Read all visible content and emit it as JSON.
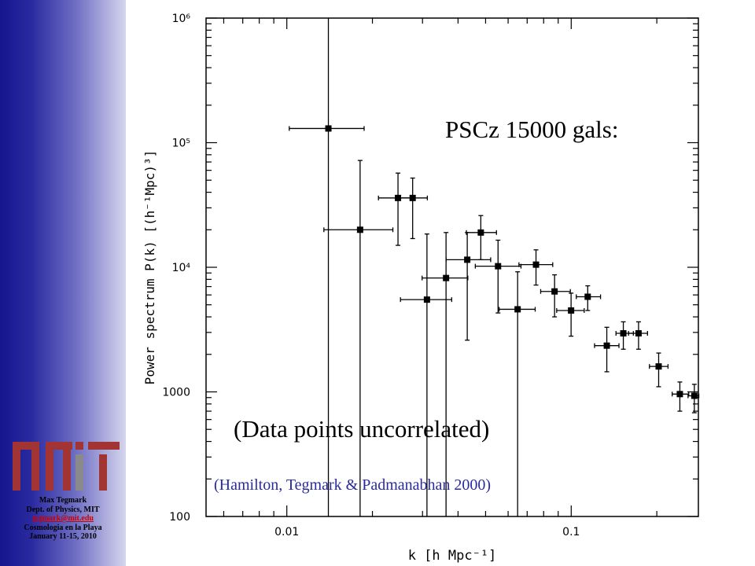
{
  "sidebar": {
    "author": "Max Tegmark",
    "dept": "Dept. of Physics, MIT",
    "email": "tegmark@mit.edu",
    "event": "Cosmologia en la Playa",
    "dates": "January 11-15, 2010"
  },
  "colors": {
    "logo_red": "#a33434",
    "logo_gray": "#8a8a8a",
    "reference_text": "#2a2aa0",
    "email_text": "#d00000"
  },
  "chart_data": {
    "type": "scatter",
    "xscale": "log",
    "yscale": "log",
    "xlim": [
      0.0052,
      0.28
    ],
    "ylim": [
      100,
      1000000
    ],
    "xlabel": "k [h Mpc⁻¹]",
    "ylabel": "Power spectrum P(k) [(h⁻¹Mpc)³]",
    "x_ticks": [
      {
        "value": 0.01,
        "label": "0.01"
      },
      {
        "value": 0.1,
        "label": "0.1"
      }
    ],
    "y_ticks": [
      {
        "value": 100,
        "label": "100"
      },
      {
        "value": 1000,
        "label": "1000"
      },
      {
        "value": 10000,
        "label": "10⁴"
      },
      {
        "value": 100000,
        "label": "10⁵"
      },
      {
        "value": 1000000,
        "label": "10⁶"
      }
    ],
    "points": [
      {
        "k": 0.014,
        "P": 130000,
        "kmin": 0.0102,
        "kmax": 0.0187,
        "Plo": 100,
        "Phi": 1000000
      },
      {
        "k": 0.0181,
        "P": 20000,
        "kmin": 0.0135,
        "kmax": 0.0236,
        "Plo": 100,
        "Phi": 72000
      },
      {
        "k": 0.0246,
        "P": 36000,
        "kmin": 0.021,
        "kmax": 0.0272,
        "Plo": 15000,
        "Phi": 57000
      },
      {
        "k": 0.0277,
        "P": 36000,
        "kmin": 0.025,
        "kmax": 0.0312,
        "Plo": 17000,
        "Phi": 52000
      },
      {
        "k": 0.0311,
        "P": 5500,
        "kmin": 0.0251,
        "kmax": 0.038,
        "Plo": 100,
        "Phi": 18500
      },
      {
        "k": 0.0363,
        "P": 8200,
        "kmin": 0.0299,
        "kmax": 0.0433,
        "Plo": 100,
        "Phi": 19000
      },
      {
        "k": 0.0431,
        "P": 11500,
        "kmin": 0.0363,
        "kmax": 0.0521,
        "Plo": 2600,
        "Phi": 19000
      },
      {
        "k": 0.0481,
        "P": 19000,
        "kmin": 0.0428,
        "kmax": 0.0546,
        "Plo": 11500,
        "Phi": 26000
      },
      {
        "k": 0.0553,
        "P": 10200,
        "kmin": 0.046,
        "kmax": 0.0666,
        "Plo": 4300,
        "Phi": 16500
      },
      {
        "k": 0.0648,
        "P": 4600,
        "kmin": 0.0558,
        "kmax": 0.0747,
        "Plo": 100,
        "Phi": 9200
      },
      {
        "k": 0.0752,
        "P": 10500,
        "kmin": 0.0655,
        "kmax": 0.0861,
        "Plo": 7200,
        "Phi": 13800
      },
      {
        "k": 0.0874,
        "P": 6400,
        "kmin": 0.0781,
        "kmax": 0.0993,
        "Plo": 4000,
        "Phi": 8700
      },
      {
        "k": 0.0999,
        "P": 4500,
        "kmin": 0.0889,
        "kmax": 0.1111,
        "Plo": 2800,
        "Phi": 6200
      },
      {
        "k": 0.1143,
        "P": 5800,
        "kmin": 0.1042,
        "kmax": 0.1268,
        "Plo": 4500,
        "Phi": 7100
      },
      {
        "k": 0.1334,
        "P": 2350,
        "kmin": 0.1208,
        "kmax": 0.1472,
        "Plo": 1450,
        "Phi": 3300
      },
      {
        "k": 0.1525,
        "P": 2950,
        "kmin": 0.1437,
        "kmax": 0.1654,
        "Plo": 2200,
        "Phi": 3650
      },
      {
        "k": 0.1725,
        "P": 2950,
        "kmin": 0.1591,
        "kmax": 0.1855,
        "Plo": 2200,
        "Phi": 3650
      },
      {
        "k": 0.203,
        "P": 1600,
        "kmin": 0.1884,
        "kmax": 0.219,
        "Plo": 1100,
        "Phi": 2050
      },
      {
        "k": 0.241,
        "P": 960,
        "kmin": 0.2265,
        "kmax": 0.259,
        "Plo": 700,
        "Phi": 1200
      },
      {
        "k": 0.271,
        "P": 930,
        "kmin": 0.2575,
        "kmax": 0.281,
        "Plo": 680,
        "Phi": 1150
      }
    ],
    "annotations": {
      "dataset": "PSCz 15000 gals:",
      "note": "(Data points uncorrelated)",
      "reference": "(Hamilton, Tegmark & Padmanabhan 2000)"
    }
  }
}
